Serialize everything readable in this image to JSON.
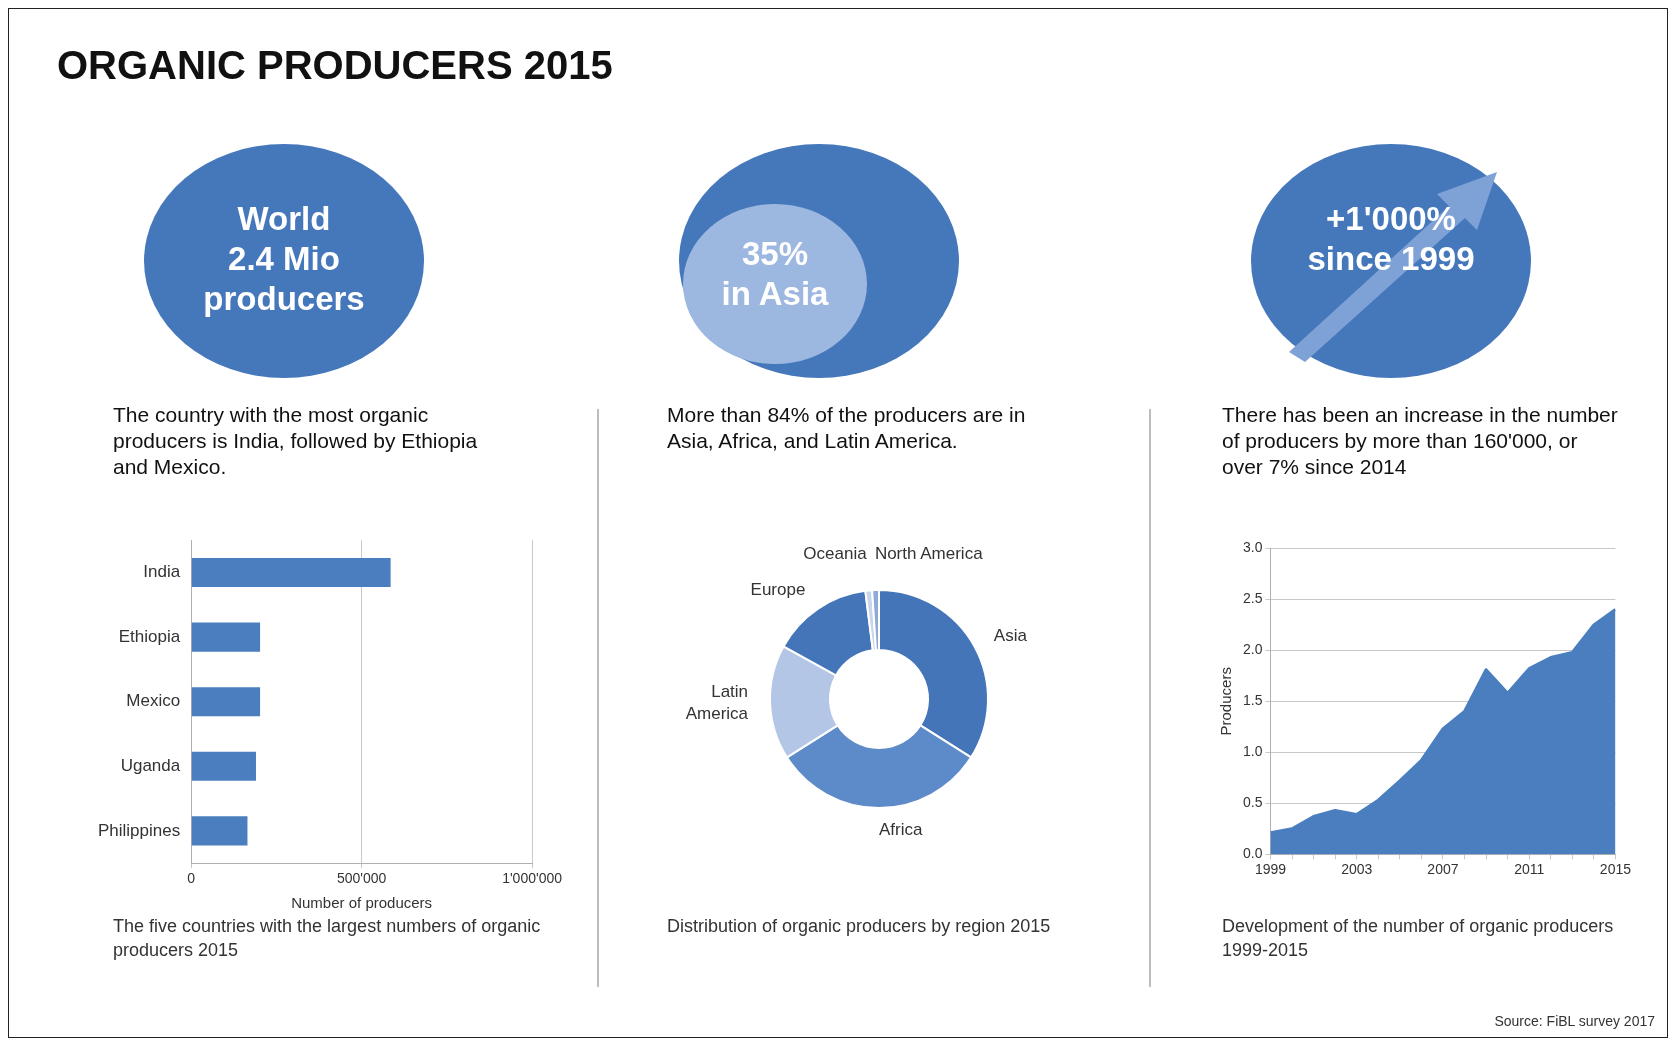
{
  "chart_data": [
    {
      "type": "other",
      "title": "ORGANIC PRODUCERS 2015",
      "annotations": [
        "Source: FiBL survey 2017"
      ]
    },
    {
      "type": "bar",
      "orientation": "horizontal",
      "title": "The five countries with the largest numbers of organic producers 2015",
      "subtitle": "The country with the most organic producers is India, followed by Ethiopia and Mexico.",
      "annotations": [
        "World\n2.4 Mio\nproducers"
      ],
      "xlabel": "Number of producers",
      "categories": [
        "India",
        "Ethiopia",
        "Mexico",
        "Uganda",
        "Philippines"
      ],
      "values": [
        585000,
        202000,
        202000,
        190000,
        165000
      ],
      "color": "#4a7ebf",
      "xlim": [
        0,
        1000000
      ],
      "xticks": [
        0,
        {
          "value": 500000,
          "label": "500'000"
        },
        {
          "value": 1000000,
          "label": "1'000'000"
        }
      ],
      "grid": "x"
    },
    {
      "type": "donut",
      "title": "Distribution of organic producers by region 2015",
      "subtitle": "More than 84% of the producers are in Asia, Africa, and Latin  America.",
      "annotations": [
        "35%\nin  Asia"
      ],
      "categories": [
        "Asia",
        "Africa",
        "Latin\nAmerica",
        "Europe",
        "Oceania",
        "North America"
      ],
      "values": [
        34,
        32,
        17,
        15,
        1,
        1
      ],
      "colors": [
        "#4475b8",
        "#5d8ac9",
        "#b4c6e6",
        "#4475b8",
        "#c8d5ec",
        "#8fa9d8"
      ]
    },
    {
      "type": "area",
      "title": "Development of the number of organic producers 1999-2015",
      "subtitle": "There has been an increase in the number of producers by more than 160'000, or over 7% since 2014",
      "annotations": [
        "+1'000%\nsince 1999"
      ],
      "ylabel": "Producers",
      "x": [
        1999,
        2000,
        2001,
        2002,
        2003,
        2004,
        2005,
        2006,
        2007,
        2008,
        2009,
        2010,
        2011,
        2012,
        2013,
        2014,
        2015
      ],
      "values": [
        0.21,
        0.25,
        0.37,
        0.43,
        0.39,
        0.53,
        0.72,
        0.92,
        1.23,
        1.4,
        1.81,
        1.58,
        1.82,
        1.93,
        1.98,
        2.25,
        2.4
      ],
      "color": "#4a7ebf",
      "xlim": [
        1999,
        2015
      ],
      "xticks": [
        1999,
        {
          "value": 2000,
          "label": null
        },
        {
          "value": 2001,
          "label": null
        },
        {
          "value": 2002,
          "label": null
        },
        2003,
        {
          "value": 2004,
          "label": null
        },
        {
          "value": 2005,
          "label": null
        },
        {
          "value": 2006,
          "label": null
        },
        2007,
        {
          "value": 2008,
          "label": null
        },
        {
          "value": 2009,
          "label": null
        },
        {
          "value": 2010,
          "label": null
        },
        2011,
        {
          "value": 2012,
          "label": null
        },
        {
          "value": 2013,
          "label": null
        },
        {
          "value": 2014,
          "label": null
        },
        2015
      ],
      "ylim": [
        0,
        3
      ],
      "yticks": [
        {
          "value": 0,
          "label": "0.0"
        },
        {
          "value": 0.5,
          "label": "0.5"
        },
        {
          "value": 1,
          "label": "1.0"
        },
        {
          "value": 1.5,
          "label": "1.5"
        },
        {
          "value": 2,
          "label": "2.0"
        },
        {
          "value": 2.5,
          "label": "2.5"
        },
        {
          "value": 3,
          "label": "3.0"
        }
      ],
      "grid": "y",
      "marker": "none"
    }
  ]
}
